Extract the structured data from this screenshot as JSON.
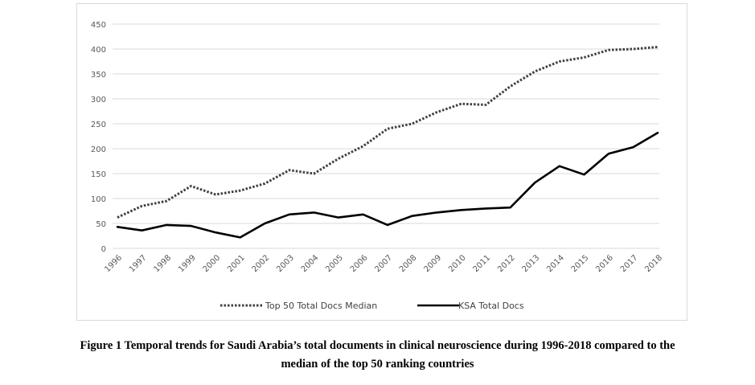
{
  "chart_data": {
    "type": "line",
    "categories": [
      "1996",
      "1997",
      "1998",
      "1999",
      "2000",
      "2001",
      "2002",
      "2003",
      "2004",
      "2005",
      "2006",
      "2007",
      "2008",
      "2009",
      "2010",
      "2011",
      "2012",
      "2013",
      "2014",
      "2015",
      "2016",
      "2017",
      "2018"
    ],
    "series": [
      {
        "name": "Top 50 Total Docs Median",
        "values": [
          62,
          85,
          95,
          125,
          108,
          116,
          130,
          157,
          150,
          180,
          205,
          240,
          250,
          273,
          290,
          288,
          325,
          355,
          375,
          383,
          398,
          400,
          404
        ],
        "style": "dotted",
        "color": "#404040"
      },
      {
        "name": "KSA Total Docs",
        "values": [
          43,
          36,
          47,
          45,
          32,
          22,
          50,
          68,
          72,
          62,
          68,
          47,
          65,
          72,
          77,
          80,
          82,
          132,
          165,
          148,
          190,
          203,
          232
        ],
        "style": "solid",
        "color": "#000000"
      }
    ],
    "yticks": [
      0,
      50,
      100,
      150,
      200,
      250,
      300,
      350,
      400,
      450
    ],
    "ylim": [
      0,
      450
    ],
    "grid": true,
    "legend_position": "bottom",
    "title": "",
    "xlabel": "",
    "ylabel": ""
  },
  "caption": {
    "line1": "Figure 1 Temporal trends for Saudi Arabia’s total documents in clinical neuroscience during 1996-2018 compared to the",
    "line2": "median of the top 50 ranking countries"
  }
}
